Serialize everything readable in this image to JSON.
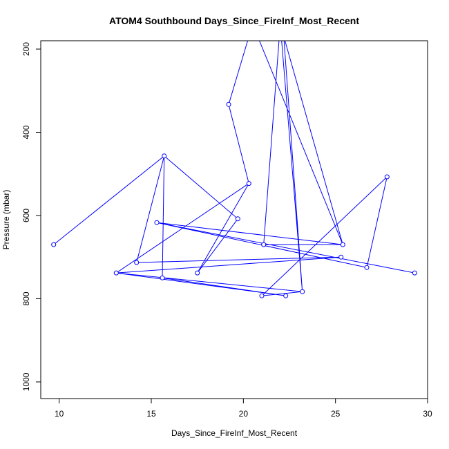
{
  "chart_data": {
    "type": "line",
    "title": "ATOM4 Southbound Days_Since_FireInf_Most_Recent",
    "xlabel": "Days_Since_FireInf_Most_Recent",
    "ylabel": "Pressure (mbar)",
    "xlim": [
      9,
      30
    ],
    "ylim": [
      1040,
      180
    ],
    "y_reversed": true,
    "grid": false,
    "legend": "none",
    "x_ticks": [
      10,
      15,
      20,
      25,
      30
    ],
    "y_ticks": [
      200,
      400,
      600,
      800,
      1000
    ],
    "x_tick_labels": [
      "10",
      "15",
      "20",
      "25",
      "30"
    ],
    "y_tick_labels": [
      "200",
      "400",
      "600",
      "800",
      "1000"
    ],
    "series_color": "#0000ff",
    "series": [
      {
        "points": [
          {
            "x": 9.7,
            "y": 670
          },
          {
            "x": 15.7,
            "y": 457
          },
          {
            "x": 14.2,
            "y": 713
          },
          {
            "x": 25.3,
            "y": 700
          },
          {
            "x": 13.1,
            "y": 738
          },
          {
            "x": 20.3,
            "y": 523
          },
          {
            "x": 17.5,
            "y": 738
          },
          {
            "x": 19.7,
            "y": 608
          },
          {
            "x": 15.7,
            "y": 457
          },
          {
            "x": 15.6,
            "y": 750
          },
          {
            "x": 22.3,
            "y": 793
          },
          {
            "x": 13.1,
            "y": 738
          },
          {
            "x": 23.2,
            "y": 783
          },
          {
            "x": 22.2,
            "y": 175
          },
          {
            "x": 22.0,
            "y": 140
          },
          {
            "x": 21.1,
            "y": 670
          },
          {
            "x": 25.4,
            "y": 670
          },
          {
            "x": 15.3,
            "y": 617
          },
          {
            "x": 29.3,
            "y": 738
          },
          {
            "x": 15.3,
            "y": 617
          },
          {
            "x": 26.7,
            "y": 725
          },
          {
            "x": 27.8,
            "y": 507
          },
          {
            "x": 21.0,
            "y": 793
          },
          {
            "x": 23.2,
            "y": 783
          },
          {
            "x": 22.0,
            "y": 140
          },
          {
            "x": 25.4,
            "y": 670
          },
          {
            "x": 20.5,
            "y": 140
          },
          {
            "x": 19.2,
            "y": 333
          },
          {
            "x": 20.3,
            "y": 523
          }
        ],
        "plotted": [
          {
            "x": 9.7,
            "y": 670
          },
          {
            "x": 15.7,
            "y": 457
          },
          {
            "x": 14.2,
            "y": 713
          },
          {
            "x": 25.3,
            "y": 700
          },
          {
            "x": 13.1,
            "y": 738
          },
          {
            "x": 20.3,
            "y": 523
          },
          {
            "x": 17.5,
            "y": 738
          },
          {
            "x": 19.7,
            "y": 608
          },
          {
            "x": 15.6,
            "y": 750
          },
          {
            "x": 22.3,
            "y": 793
          },
          {
            "x": 23.2,
            "y": 783
          },
          {
            "x": 21.1,
            "y": 670
          },
          {
            "x": 25.4,
            "y": 670
          },
          {
            "x": 15.3,
            "y": 617
          },
          {
            "x": 29.3,
            "y": 738
          },
          {
            "x": 26.7,
            "y": 725
          },
          {
            "x": 27.8,
            "y": 507
          },
          {
            "x": 21.0,
            "y": 793
          },
          {
            "x": 19.2,
            "y": 333
          }
        ]
      }
    ]
  }
}
